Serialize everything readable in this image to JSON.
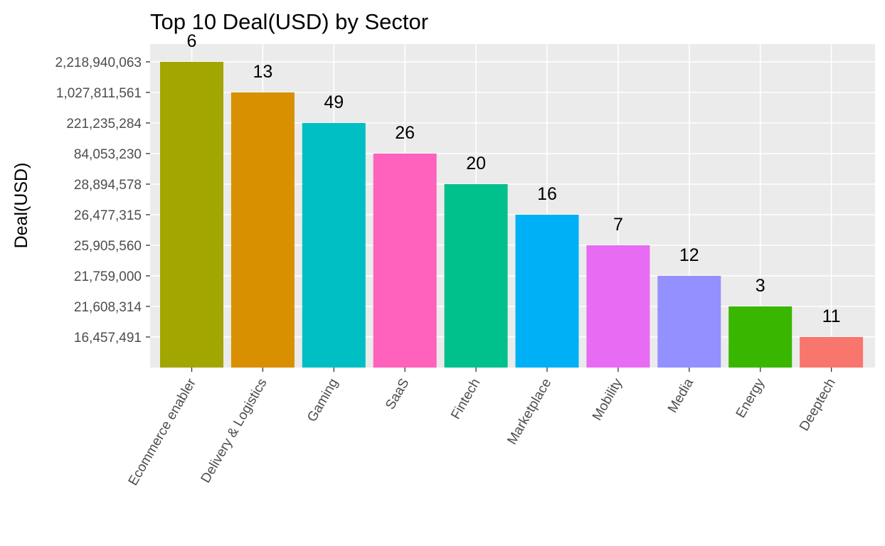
{
  "chart_data": {
    "type": "bar",
    "title": "Top 10 Deal(USD) by Sector",
    "xlabel": "",
    "ylabel": "Deal(USD)",
    "y_axis_scale": "categorical (equally spaced ranks, labeled with deal totals)",
    "y_tick_labels": [
      "16,457,491",
      "21,608,314",
      "21,759,000",
      "25,905,560",
      "26,477,315",
      "28,894,578",
      "84,053,230",
      "221,235,284",
      "1,027,811,561",
      "2,218,940,063"
    ],
    "categories": [
      "Ecommerce enabler",
      "Delivery & Logistics",
      "Gaming",
      "SaaS",
      "Fintech",
      "Marketplace",
      "Mobility",
      "Media",
      "Energy",
      "Deeptech"
    ],
    "values": [
      2218940063,
      1027811561,
      221235284,
      84053230,
      28894578,
      26477315,
      25905560,
      21759000,
      21608314,
      16457491
    ],
    "value_labels": [
      "6",
      "13",
      "49",
      "26",
      "20",
      "16",
      "7",
      "12",
      "3",
      "11"
    ],
    "colors": [
      "#A3A500",
      "#D89000",
      "#00BFC4",
      "#FF62BC",
      "#00C08B",
      "#00B0F6",
      "#E76BF3",
      "#9590FF",
      "#39B600",
      "#F8766D"
    ],
    "panel_background": "#EBEBEB",
    "gridline_color": "#FFFFFF",
    "grid": true,
    "legend": "none"
  }
}
